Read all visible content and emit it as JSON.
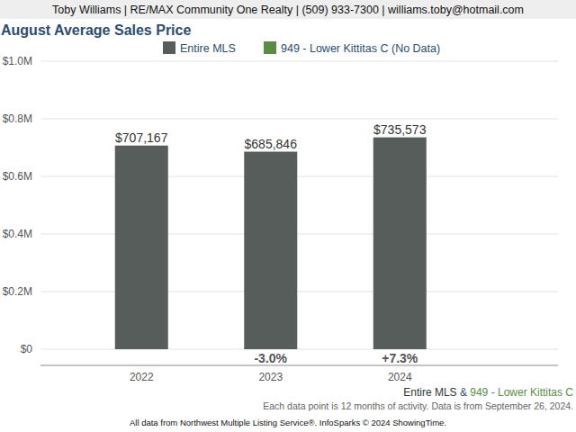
{
  "chart_data": {
    "type": "bar",
    "header": "Toby Williams | RE/MAX Community One Realty | (509) 933-7300 | williams.toby@hotmail.com",
    "title": "August Average Sales Price",
    "categories": [
      "2022",
      "2023",
      "2024"
    ],
    "series": [
      {
        "name": "Entire MLS",
        "color": "#565d5a",
        "values": [
          707167,
          685846,
          735573
        ],
        "value_labels": [
          "$707,167",
          "$685,846",
          "$735,573"
        ]
      },
      {
        "name": "949 - Lower Kittitas C (No Data)",
        "color": "#5b8c45",
        "values": [
          null,
          null,
          null
        ]
      }
    ],
    "change_labels": [
      null,
      "-3.0%",
      "+7.3%"
    ],
    "ylim": [
      0,
      1000000
    ],
    "yticks": [
      {
        "value": 0,
        "label": "$0"
      },
      {
        "value": 200000,
        "label": "$0.2M"
      },
      {
        "value": 400000,
        "label": "$0.4M"
      },
      {
        "value": 600000,
        "label": "$0.6M"
      },
      {
        "value": 800000,
        "label": "$0.8M"
      },
      {
        "value": 1000000,
        "label": "$1.0M"
      }
    ],
    "grid": true,
    "data_labels": true,
    "legend": "top",
    "footer_legend": [
      "Entire MLS",
      "&",
      "949 - Lower Kittitas C"
    ],
    "note": "Each data point is 12 months of activity. Data is from September 26, 2024.",
    "source": "All data from Northwest Multiple Listing Service®. InfoSparks © 2024 ShowingTime."
  }
}
